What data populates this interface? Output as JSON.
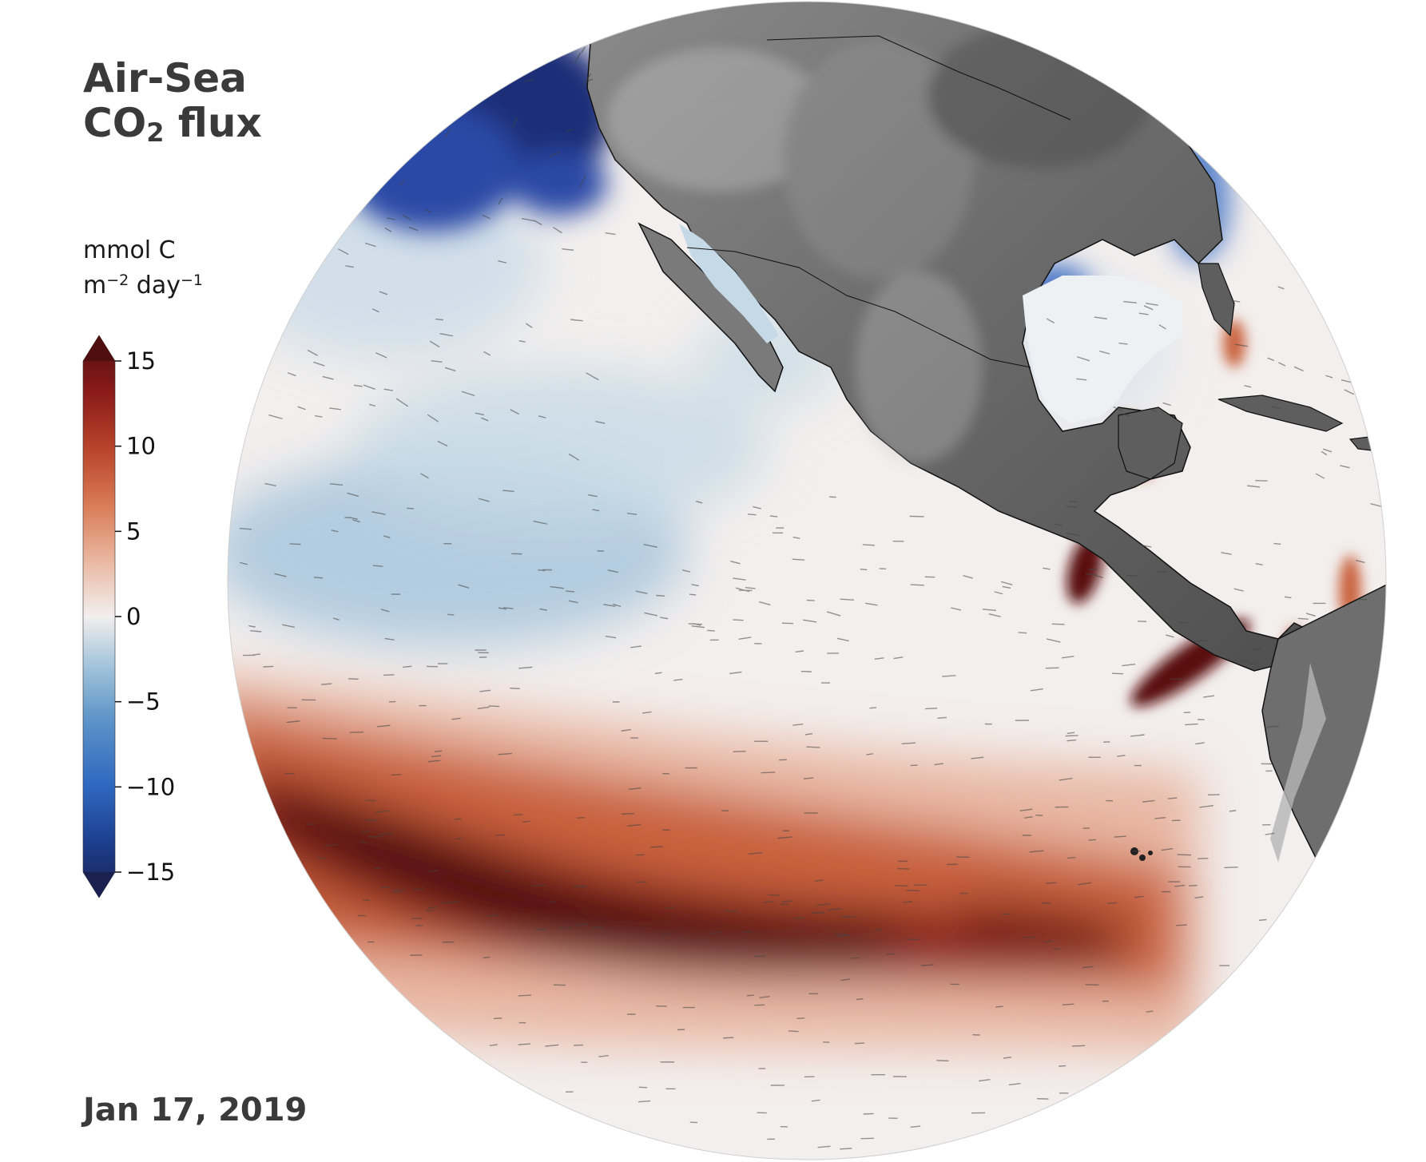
{
  "title": {
    "line1": "Air-Sea",
    "co": "CO",
    "subscript": "2",
    "flux": " flux"
  },
  "units": {
    "line1": "mmol C",
    "m": "m",
    "m_exp": "−2",
    "day": " day",
    "day_exp": "−1"
  },
  "date": "Jan 17, 2019",
  "colorbar": {
    "min": -15,
    "max": 15,
    "extend": "both",
    "ticks": [
      {
        "value": 15,
        "label": "15"
      },
      {
        "value": 10,
        "label": "10"
      },
      {
        "value": 5,
        "label": "5"
      },
      {
        "value": 0,
        "label": "0"
      },
      {
        "value": -5,
        "label": "−5"
      },
      {
        "value": -10,
        "label": "−10"
      },
      {
        "value": -15,
        "label": "−15"
      }
    ],
    "colormap": [
      "#1a2150",
      "#1d3f8f",
      "#2f68c0",
      "#5f95c8",
      "#a9c8dd",
      "#f2efee",
      "#e9b7a0",
      "#d97a55",
      "#b7432a",
      "#8a1a1a",
      "#4e0d0e"
    ]
  },
  "colors": {
    "text": "#3a3a3a",
    "ocean_neutral": "#f3efee",
    "land": "#6e6e6e",
    "outgassing": "#5a0f10",
    "uptake": "#1a2a6c"
  }
}
